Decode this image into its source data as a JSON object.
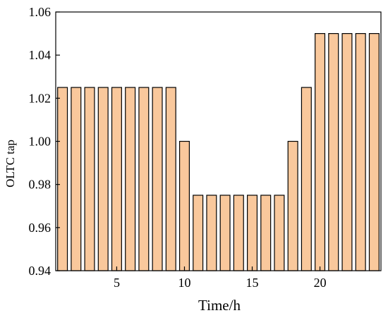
{
  "chart_data": {
    "type": "bar",
    "title": "",
    "xlabel": "Time/h",
    "ylabel": "OLTC tap",
    "x": [
      1,
      2,
      3,
      4,
      5,
      6,
      7,
      8,
      9,
      10,
      11,
      12,
      13,
      14,
      15,
      16,
      17,
      18,
      19,
      20,
      21,
      22,
      23,
      24
    ],
    "values": [
      1.025,
      1.025,
      1.025,
      1.025,
      1.025,
      1.025,
      1.025,
      1.025,
      1.025,
      1.0,
      0.975,
      0.975,
      0.975,
      0.975,
      0.975,
      0.975,
      0.975,
      1.0,
      1.025,
      1.05,
      1.05,
      1.05,
      1.05,
      1.05
    ],
    "xlim": [
      0.5,
      24.5
    ],
    "ylim": [
      0.94,
      1.06
    ],
    "xticks": [
      5,
      10,
      15,
      20
    ],
    "yticks": [
      0.94,
      0.96,
      0.98,
      1.0,
      1.02,
      1.04,
      1.06
    ],
    "ytick_labels": [
      "0.94",
      "0.96",
      "0.98",
      "1.00",
      "1.02",
      "1.04",
      "1.06"
    ],
    "bar_color": "#F9C89C",
    "bar_edge_color": "#000000",
    "grid": false,
    "legend": "none"
  }
}
